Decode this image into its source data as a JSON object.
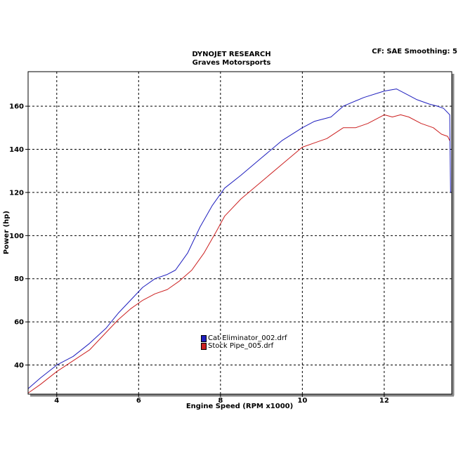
{
  "chart_data": {
    "type": "line",
    "title": "DYNOJET RESEARCH",
    "subtitle": "Graves Motorsports",
    "info": "CF: SAE  Smoothing: 5",
    "xlabel": "Engine Speed (RPM x1000)",
    "ylabel": "Power (hp)",
    "xlim": [
      3.3,
      13.65
    ],
    "ylim": [
      26.5,
      176
    ],
    "xticks": [
      4,
      6,
      8,
      10,
      12
    ],
    "yticks": [
      40,
      60,
      80,
      100,
      120,
      140,
      160
    ],
    "grid": true,
    "legend_position": "center",
    "series": [
      {
        "name": "Cat Eliminator_002.drf",
        "color": "#1e1ebe",
        "points": [
          [
            3.3,
            29
          ],
          [
            3.6,
            34
          ],
          [
            4.0,
            40
          ],
          [
            4.4,
            44
          ],
          [
            4.8,
            50
          ],
          [
            5.2,
            57
          ],
          [
            5.5,
            64
          ],
          [
            5.8,
            70
          ],
          [
            6.1,
            76
          ],
          [
            6.4,
            80
          ],
          [
            6.7,
            82
          ],
          [
            6.9,
            84
          ],
          [
            7.2,
            92
          ],
          [
            7.5,
            104
          ],
          [
            7.8,
            114
          ],
          [
            8.1,
            122
          ],
          [
            8.5,
            128
          ],
          [
            9.0,
            136
          ],
          [
            9.5,
            144
          ],
          [
            10.0,
            150
          ],
          [
            10.3,
            153
          ],
          [
            10.7,
            155
          ],
          [
            11.0,
            160
          ],
          [
            11.5,
            164
          ],
          [
            12.0,
            167
          ],
          [
            12.3,
            168
          ],
          [
            12.5,
            166
          ],
          [
            12.8,
            163
          ],
          [
            13.1,
            161
          ],
          [
            13.3,
            160
          ],
          [
            13.45,
            159
          ],
          [
            13.55,
            157
          ],
          [
            13.6,
            156
          ],
          [
            13.62,
            120
          ]
        ]
      },
      {
        "name": "Stock Pipe_005.drf",
        "color": "#cc2020",
        "points": [
          [
            3.3,
            27
          ],
          [
            3.6,
            31
          ],
          [
            4.0,
            37
          ],
          [
            4.4,
            42
          ],
          [
            4.8,
            47
          ],
          [
            5.2,
            55
          ],
          [
            5.5,
            61
          ],
          [
            5.8,
            66
          ],
          [
            6.1,
            70
          ],
          [
            6.4,
            73
          ],
          [
            6.7,
            75
          ],
          [
            7.0,
            79
          ],
          [
            7.3,
            84
          ],
          [
            7.6,
            92
          ],
          [
            7.9,
            102
          ],
          [
            8.1,
            109
          ],
          [
            8.5,
            117
          ],
          [
            9.0,
            125
          ],
          [
            9.5,
            133
          ],
          [
            10.0,
            141
          ],
          [
            10.3,
            143
          ],
          [
            10.6,
            145
          ],
          [
            11.0,
            150
          ],
          [
            11.3,
            150
          ],
          [
            11.6,
            152
          ],
          [
            12.0,
            156
          ],
          [
            12.2,
            155
          ],
          [
            12.4,
            156
          ],
          [
            12.6,
            155
          ],
          [
            12.9,
            152
          ],
          [
            13.2,
            150
          ],
          [
            13.4,
            147
          ],
          [
            13.55,
            146
          ],
          [
            13.6,
            144
          ]
        ]
      }
    ]
  }
}
